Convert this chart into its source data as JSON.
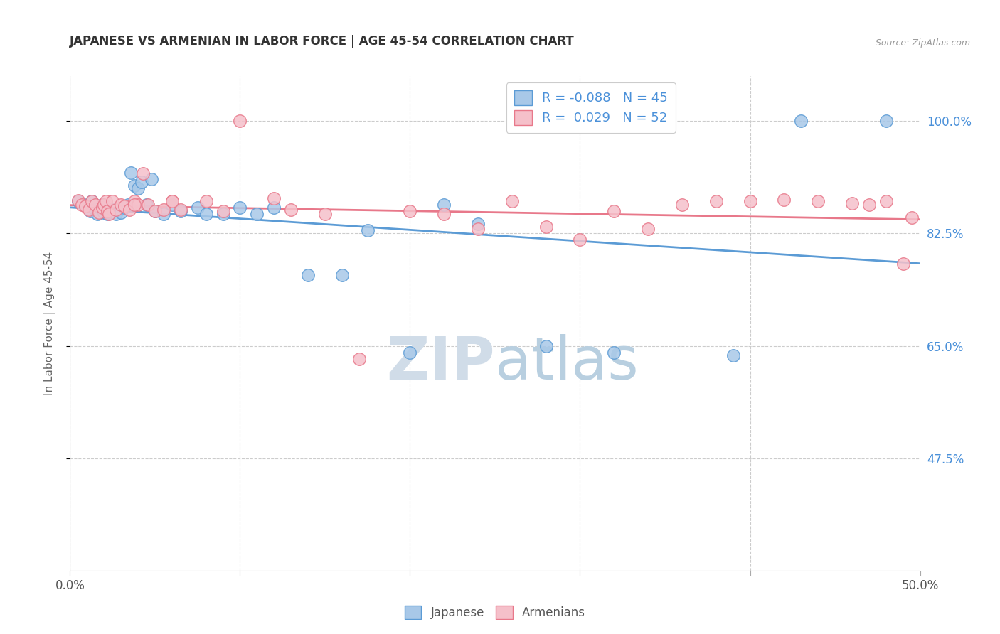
{
  "title": "JAPANESE VS ARMENIAN IN LABOR FORCE | AGE 45-54 CORRELATION CHART",
  "source": "Source: ZipAtlas.com",
  "ylabel": "In Labor Force | Age 45-54",
  "xlim": [
    0.0,
    0.5
  ],
  "ylim": [
    0.3,
    1.07
  ],
  "yticks": [
    0.475,
    0.65,
    0.825,
    1.0
  ],
  "ytick_labels_right": [
    "47.5%",
    "65.0%",
    "82.5%",
    "100.0%"
  ],
  "xticks": [
    0.0,
    0.1,
    0.2,
    0.3,
    0.4,
    0.5
  ],
  "xtick_labels": [
    "0.0%",
    "",
    "",
    "",
    "",
    "50.0%"
  ],
  "legend_r_japanese": "-0.088",
  "legend_n_japanese": "45",
  "legend_r_armenian": " 0.029",
  "legend_n_armenian": "52",
  "japanese_fill": "#a8c8e8",
  "armenian_fill": "#f5c0ca",
  "japanese_edge": "#5b9bd5",
  "armenian_edge": "#e8788a",
  "japanese_line": "#5b9bd5",
  "armenian_line": "#e8788a",
  "grid_color": "#cccccc",
  "background_color": "#ffffff",
  "title_color": "#333333",
  "axis_color": "#888888",
  "right_tick_color": "#4a90d9",
  "watermark_color": "#dce8f5",
  "japanese_x": [
    0.005,
    0.008,
    0.01,
    0.012,
    0.013,
    0.015,
    0.016,
    0.018,
    0.019,
    0.02,
    0.021,
    0.022,
    0.023,
    0.025,
    0.027,
    0.03,
    0.032,
    0.034,
    0.036,
    0.038,
    0.04,
    0.042,
    0.045,
    0.048,
    0.05,
    0.055,
    0.06,
    0.065,
    0.075,
    0.08,
    0.09,
    0.1,
    0.11,
    0.12,
    0.14,
    0.16,
    0.175,
    0.2,
    0.22,
    0.24,
    0.28,
    0.32,
    0.39,
    0.43,
    0.48
  ],
  "japanese_y": [
    0.875,
    0.87,
    0.868,
    0.86,
    0.875,
    0.862,
    0.855,
    0.865,
    0.87,
    0.858,
    0.862,
    0.855,
    0.858,
    0.862,
    0.855,
    0.858,
    0.865,
    0.87,
    0.92,
    0.9,
    0.895,
    0.905,
    0.87,
    0.91,
    0.86,
    0.855,
    0.87,
    0.86,
    0.865,
    0.855,
    0.855,
    0.865,
    0.855,
    0.865,
    0.76,
    0.76,
    0.83,
    0.64,
    0.87,
    0.84,
    0.65,
    0.64,
    0.635,
    1.0,
    1.0
  ],
  "armenian_x": [
    0.005,
    0.007,
    0.009,
    0.011,
    0.013,
    0.015,
    0.017,
    0.019,
    0.02,
    0.021,
    0.022,
    0.023,
    0.025,
    0.027,
    0.03,
    0.032,
    0.035,
    0.038,
    0.04,
    0.043,
    0.046,
    0.05,
    0.055,
    0.06,
    0.065,
    0.08,
    0.09,
    0.1,
    0.12,
    0.13,
    0.15,
    0.17,
    0.2,
    0.22,
    0.24,
    0.26,
    0.28,
    0.3,
    0.32,
    0.34,
    0.36,
    0.38,
    0.4,
    0.42,
    0.44,
    0.46,
    0.47,
    0.48,
    0.49,
    0.495,
    0.038,
    0.06
  ],
  "armenian_y": [
    0.876,
    0.87,
    0.868,
    0.862,
    0.875,
    0.87,
    0.858,
    0.865,
    0.87,
    0.875,
    0.86,
    0.855,
    0.875,
    0.862,
    0.87,
    0.868,
    0.862,
    0.875,
    0.87,
    0.918,
    0.87,
    0.86,
    0.862,
    0.875,
    0.862,
    0.875,
    0.86,
    1.0,
    0.88,
    0.862,
    0.855,
    0.63,
    0.86,
    0.855,
    0.832,
    0.875,
    0.835,
    0.815,
    0.86,
    0.832,
    0.87,
    0.875,
    0.875,
    0.878,
    0.875,
    0.872,
    0.87,
    0.875,
    0.778,
    0.85,
    0.87,
    0.875
  ]
}
